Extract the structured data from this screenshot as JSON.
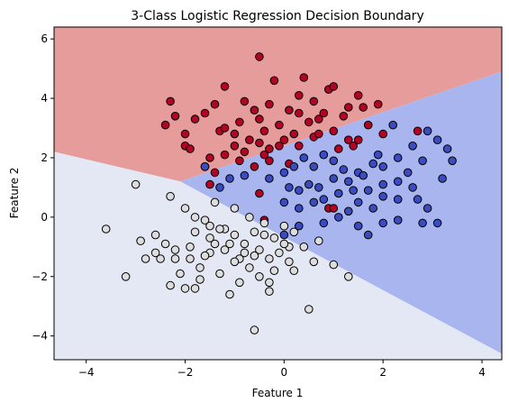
{
  "chart_data": {
    "type": "scatter",
    "title": "3-Class Logistic Regression Decision Boundary",
    "xlabel": "Feature 1",
    "ylabel": "Feature 2",
    "xlim": [
      -4.65,
      4.4
    ],
    "ylim": [
      -4.8,
      6.4
    ],
    "xticks": [
      -4,
      -2,
      0,
      2,
      4
    ],
    "yticks": [
      -4,
      -2,
      0,
      2,
      4,
      6
    ],
    "xtick_labels": [
      "−4",
      "−2",
      "0",
      "2",
      "4"
    ],
    "ytick_labels": [
      "−4",
      "−2",
      "0",
      "2",
      "4",
      "6"
    ],
    "grid": false,
    "legend": "none",
    "colors": {
      "region_red": "#e59c9a",
      "region_blue": "#a8b5ee",
      "region_white": "#e3e8f4",
      "point_red": "#b40426",
      "point_blue": "#3b4cc0",
      "point_white": "#dddddd",
      "point_edge": "#000000"
    },
    "decision_regions": [
      {
        "class": "red",
        "polygon": [
          [
            -4.65,
            2.2
          ],
          [
            -2.1,
            1.2
          ],
          [
            4.4,
            4.9
          ],
          [
            4.4,
            6.4
          ],
          [
            -4.65,
            6.4
          ]
        ]
      },
      {
        "class": "blue",
        "polygon": [
          [
            -2.1,
            1.2
          ],
          [
            4.4,
            4.9
          ],
          [
            4.4,
            -4.6
          ]
        ]
      },
      {
        "class": "white",
        "polygon": [
          [
            -4.65,
            -4.8
          ],
          [
            -4.65,
            2.2
          ],
          [
            -2.1,
            1.2
          ],
          [
            4.4,
            -4.6
          ],
          [
            4.4,
            -4.8
          ]
        ]
      }
    ],
    "series": [
      {
        "color_key": "point_red",
        "points": [
          [
            -0.5,
            5.4
          ],
          [
            -0.2,
            4.6
          ],
          [
            0.4,
            4.7
          ],
          [
            -1.2,
            4.4
          ],
          [
            0.9,
            4.3
          ],
          [
            1.0,
            4.4
          ],
          [
            1.5,
            4.1
          ],
          [
            1.6,
            3.7
          ],
          [
            1.9,
            3.8
          ],
          [
            1.7,
            3.1
          ],
          [
            -2.3,
            3.9
          ],
          [
            -2.2,
            3.4
          ],
          [
            -1.8,
            3.3
          ],
          [
            -1.6,
            3.5
          ],
          [
            -1.4,
            3.8
          ],
          [
            -0.8,
            3.9
          ],
          [
            -0.6,
            3.6
          ],
          [
            -0.3,
            3.8
          ],
          [
            0.1,
            3.6
          ],
          [
            0.3,
            3.5
          ],
          [
            0.6,
            3.9
          ],
          [
            0.8,
            3.5
          ],
          [
            1.2,
            3.4
          ],
          [
            -2.4,
            3.1
          ],
          [
            -2.0,
            2.8
          ],
          [
            -1.3,
            2.9
          ],
          [
            -1.0,
            2.8
          ],
          [
            -0.7,
            2.6
          ],
          [
            -0.4,
            2.9
          ],
          [
            -0.1,
            3.1
          ],
          [
            0.2,
            2.8
          ],
          [
            0.5,
            3.2
          ],
          [
            0.7,
            3.3
          ],
          [
            1.0,
            2.9
          ],
          [
            1.3,
            2.6
          ],
          [
            -2.0,
            2.4
          ],
          [
            -1.9,
            2.3
          ],
          [
            -1.5,
            2.0
          ],
          [
            -1.2,
            2.1
          ],
          [
            -1.0,
            2.4
          ],
          [
            -0.8,
            2.2
          ],
          [
            -0.5,
            2.5
          ],
          [
            -0.3,
            2.3
          ],
          [
            0.0,
            2.6
          ],
          [
            0.3,
            2.4
          ],
          [
            0.6,
            2.7
          ],
          [
            1.1,
            2.3
          ],
          [
            -1.6,
            1.7
          ],
          [
            -1.4,
            1.5
          ],
          [
            -0.9,
            1.9
          ],
          [
            -0.6,
            1.7
          ],
          [
            -0.3,
            1.9
          ],
          [
            0.1,
            1.8
          ],
          [
            -0.4,
            2.1
          ],
          [
            -1.5,
            1.1
          ],
          [
            -0.5,
            0.8
          ],
          [
            -0.4,
            -0.1
          ],
          [
            0.9,
            0.3
          ],
          [
            1.0,
            0.3
          ],
          [
            2.7,
            2.9
          ],
          [
            -0.5,
            3.3
          ],
          [
            0.3,
            4.1
          ],
          [
            1.3,
            3.7
          ],
          [
            2.0,
            2.8
          ],
          [
            -1.2,
            3.0
          ],
          [
            1.4,
            2.4
          ],
          [
            0.7,
            2.8
          ],
          [
            -0.9,
            3.2
          ],
          [
            -0.1,
            2.4
          ],
          [
            1.5,
            2.6
          ]
        ]
      },
      {
        "color_key": "point_blue",
        "points": [
          [
            2.9,
            2.9
          ],
          [
            3.1,
            2.6
          ],
          [
            3.3,
            2.3
          ],
          [
            3.4,
            1.9
          ],
          [
            2.8,
            1.9
          ],
          [
            2.6,
            2.4
          ],
          [
            2.2,
            3.1
          ],
          [
            2.3,
            2.0
          ],
          [
            2.0,
            1.7
          ],
          [
            1.8,
            1.8
          ],
          [
            1.5,
            1.5
          ],
          [
            1.2,
            1.6
          ],
          [
            1.0,
            1.9
          ],
          [
            0.8,
            2.1
          ],
          [
            0.6,
            1.7
          ],
          [
            0.2,
            1.7
          ],
          [
            0.0,
            1.5
          ],
          [
            -0.3,
            1.3
          ],
          [
            -0.8,
            1.4
          ],
          [
            -1.1,
            1.3
          ],
          [
            -1.3,
            1.0
          ],
          [
            -1.6,
            1.7
          ],
          [
            0.1,
            1.0
          ],
          [
            0.3,
            0.9
          ],
          [
            0.5,
            1.1
          ],
          [
            0.7,
            1.0
          ],
          [
            1.0,
            1.3
          ],
          [
            1.1,
            0.8
          ],
          [
            1.4,
            0.9
          ],
          [
            1.7,
            0.9
          ],
          [
            2.0,
            1.1
          ],
          [
            2.3,
            1.2
          ],
          [
            2.6,
            1.0
          ],
          [
            2.7,
            0.6
          ],
          [
            2.3,
            0.6
          ],
          [
            2.0,
            0.7
          ],
          [
            1.8,
            0.3
          ],
          [
            1.5,
            0.5
          ],
          [
            1.3,
            0.2
          ],
          [
            1.1,
            0.0
          ],
          [
            0.8,
            -0.2
          ],
          [
            0.6,
            0.5
          ],
          [
            0.3,
            0.3
          ],
          [
            0.0,
            0.5
          ],
          [
            0.3,
            -0.3
          ],
          [
            0.0,
            -0.6
          ],
          [
            1.5,
            -0.3
          ],
          [
            1.7,
            -0.6
          ],
          [
            2.0,
            -0.2
          ],
          [
            2.3,
            -0.1
          ],
          [
            2.8,
            -0.2
          ],
          [
            3.1,
            -0.2
          ],
          [
            2.9,
            0.3
          ],
          [
            3.2,
            1.3
          ],
          [
            1.9,
            2.1
          ],
          [
            0.4,
            2.0
          ],
          [
            1.6,
            1.4
          ],
          [
            2.5,
            1.5
          ],
          [
            1.3,
            1.2
          ],
          [
            0.8,
            0.6
          ]
        ]
      },
      {
        "color_key": "point_white",
        "points": [
          [
            -3.6,
            -0.4
          ],
          [
            -3.2,
            -2.0
          ],
          [
            -3.0,
            1.1
          ],
          [
            -2.9,
            -0.8
          ],
          [
            -2.8,
            -1.4
          ],
          [
            -2.6,
            -0.6
          ],
          [
            -2.4,
            -0.9
          ],
          [
            -2.5,
            -1.4
          ],
          [
            -2.3,
            0.7
          ],
          [
            -2.3,
            -2.3
          ],
          [
            -2.2,
            -1.1
          ],
          [
            -2.1,
            -1.9
          ],
          [
            -2.0,
            -2.4
          ],
          [
            -2.0,
            0.3
          ],
          [
            -1.9,
            -1.4
          ],
          [
            -1.8,
            -0.5
          ],
          [
            -1.8,
            -2.4
          ],
          [
            -1.7,
            -1.7
          ],
          [
            -1.6,
            -0.1
          ],
          [
            -1.5,
            -0.7
          ],
          [
            -1.5,
            -1.2
          ],
          [
            -1.4,
            0.5
          ],
          [
            -1.4,
            -0.9
          ],
          [
            -1.3,
            -1.9
          ],
          [
            -1.2,
            -0.4
          ],
          [
            -1.2,
            -1.1
          ],
          [
            -1.1,
            -2.6
          ],
          [
            -1.0,
            -0.6
          ],
          [
            -1.0,
            0.3
          ],
          [
            -0.9,
            -1.4
          ],
          [
            -0.9,
            -2.2
          ],
          [
            -0.8,
            -0.9
          ],
          [
            -0.7,
            0.0
          ],
          [
            -0.7,
            -1.7
          ],
          [
            -0.6,
            -0.5
          ],
          [
            -0.5,
            -1.1
          ],
          [
            -0.5,
            -2.0
          ],
          [
            -0.4,
            -0.2
          ],
          [
            -0.3,
            -1.4
          ],
          [
            -0.3,
            -2.5
          ],
          [
            -0.2,
            -0.7
          ],
          [
            -0.2,
            -1.8
          ],
          [
            -0.1,
            -1.2
          ],
          [
            0.0,
            -0.3
          ],
          [
            0.1,
            -1.0
          ],
          [
            0.1,
            -1.5
          ],
          [
            0.2,
            -1.8
          ],
          [
            0.5,
            -3.1
          ],
          [
            -0.6,
            -3.8
          ],
          [
            0.4,
            -1.0
          ],
          [
            0.7,
            -0.8
          ],
          [
            0.6,
            -1.5
          ],
          [
            1.0,
            -1.6
          ],
          [
            1.3,
            -2.0
          ],
          [
            -1.5,
            -0.3
          ],
          [
            -1.8,
            0.0
          ],
          [
            -2.2,
            -1.4
          ],
          [
            -1.1,
            -0.9
          ],
          [
            -0.6,
            -1.3
          ],
          [
            0.0,
            -0.9
          ],
          [
            -1.3,
            -0.4
          ],
          [
            -0.8,
            -1.2
          ],
          [
            -1.9,
            -1.0
          ],
          [
            -2.6,
            -1.2
          ],
          [
            -1.7,
            -2.1
          ],
          [
            -0.3,
            -2.2
          ],
          [
            -1.0,
            -1.5
          ],
          [
            -0.4,
            -0.6
          ],
          [
            0.2,
            -0.5
          ],
          [
            -1.6,
            -1.3
          ]
        ]
      }
    ]
  }
}
